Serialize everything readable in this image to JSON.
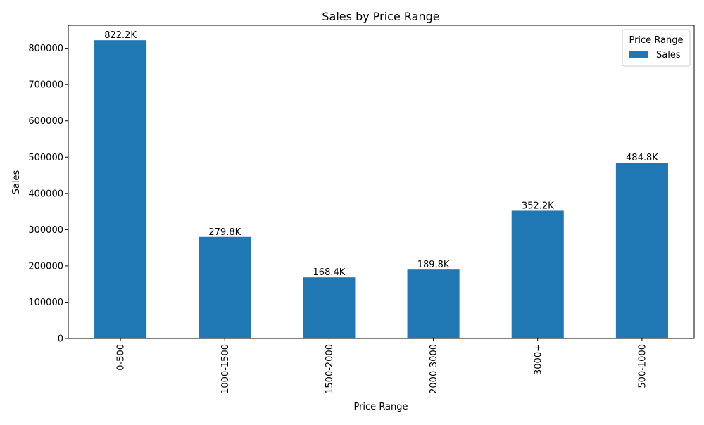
{
  "chart_data": {
    "type": "bar",
    "title": "Sales by Price Range",
    "xlabel": "Price Range",
    "ylabel": "Sales",
    "categories": [
      "0-500",
      "1000-1500",
      "1500-2000",
      "2000-3000",
      "3000+",
      "500-1000"
    ],
    "series": [
      {
        "name": "Sales",
        "values": [
          822200,
          279800,
          168400,
          189800,
          352200,
          484800
        ],
        "data_labels": [
          "822.2K",
          "279.8K",
          "168.4K",
          "189.8K",
          "352.2K",
          "484.8K"
        ],
        "color": "#1f77b4"
      }
    ],
    "ylim": [
      0,
      863310
    ],
    "yticks": [
      0,
      100000,
      200000,
      300000,
      400000,
      500000,
      600000,
      700000,
      800000
    ],
    "ytick_labels": [
      "0",
      "100000",
      "200000",
      "300000",
      "400000",
      "500000",
      "600000",
      "700000",
      "800000"
    ],
    "grid": false,
    "legend": {
      "title": "Price Range",
      "placement": "top-right",
      "entries": [
        "Sales"
      ]
    }
  }
}
